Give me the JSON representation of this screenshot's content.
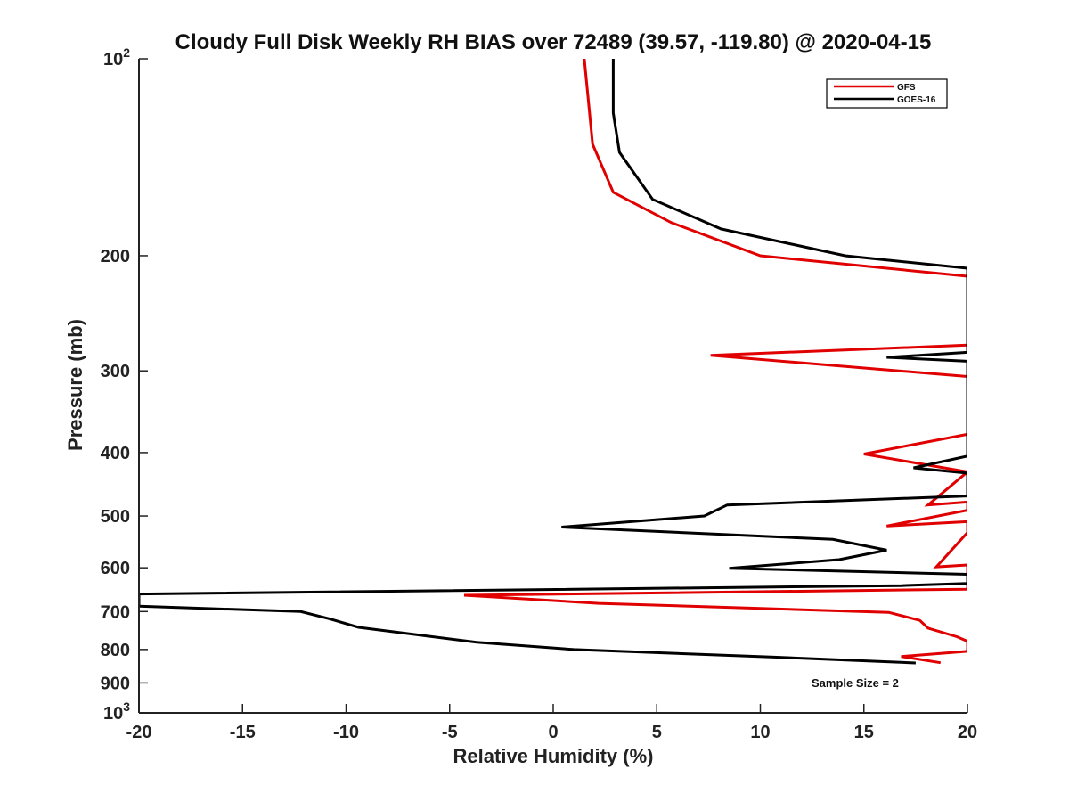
{
  "chart_data": {
    "type": "line",
    "title": "Cloudy Full Disk Weekly RH BIAS over 72489 (39.57, -119.80) @ 2020-04-15",
    "xlabel": "Relative Humidity (%)",
    "ylabel": "Pressure (mb)",
    "xlim": [
      -20,
      20
    ],
    "ylim": [
      1000,
      100
    ],
    "yscale": "log",
    "y_inverted": true,
    "grid": false,
    "legend_position": "top-right",
    "annotation": "Sample Size = 2",
    "x_tick_labels": [
      "-20",
      "-15",
      "-10",
      "-5",
      "0",
      "5",
      "10",
      "15",
      "20"
    ],
    "x_ticks": [
      -20,
      -15,
      -10,
      -5,
      0,
      5,
      10,
      15,
      20
    ],
    "y_ticks": [
      {
        "value": 100,
        "base": "10",
        "exp": "2"
      },
      {
        "value": 200,
        "label": "200"
      },
      {
        "value": 300,
        "label": "300"
      },
      {
        "value": 400,
        "label": "400"
      },
      {
        "value": 500,
        "label": "500"
      },
      {
        "value": 600,
        "label": "600"
      },
      {
        "value": 700,
        "label": "700"
      },
      {
        "value": 800,
        "label": "800"
      },
      {
        "value": 900,
        "label": "900"
      },
      {
        "value": 1000,
        "base": "10",
        "exp": "3"
      }
    ],
    "series": [
      {
        "name": "GFS",
        "color": "#e00000",
        "points": [
          [
            1.5,
            100
          ],
          [
            1.9,
            135
          ],
          [
            2.9,
            160
          ],
          [
            5.7,
            178
          ],
          [
            10.0,
            200
          ],
          [
            20,
            215
          ],
          [
            20,
            274
          ],
          [
            7.6,
            284
          ],
          [
            15.6,
            298
          ],
          [
            20,
            306
          ],
          [
            20,
            375
          ],
          [
            15.0,
            402
          ],
          [
            20,
            428
          ],
          [
            18.1,
            481
          ],
          [
            20,
            476
          ],
          [
            20,
            490
          ],
          [
            16.1,
            518
          ],
          [
            20,
            510
          ],
          [
            20,
            530
          ],
          [
            18.5,
            598
          ],
          [
            20,
            594
          ],
          [
            20,
            602
          ],
          [
            20,
            647
          ],
          [
            -4.3,
            661
          ],
          [
            2.2,
            680
          ],
          [
            16.2,
            702
          ],
          [
            17.7,
            722
          ],
          [
            18.1,
            742
          ],
          [
            19.5,
            765
          ],
          [
            20,
            777
          ],
          [
            20,
            805
          ],
          [
            16.8,
            820
          ],
          [
            18.7,
            838
          ]
        ]
      },
      {
        "name": "GOES-16",
        "color": "#000000",
        "points": [
          [
            2.9,
            100
          ],
          [
            2.9,
            121
          ],
          [
            3.2,
            139
          ],
          [
            4.8,
            164
          ],
          [
            8.1,
            182
          ],
          [
            14.1,
            200
          ],
          [
            20,
            209
          ],
          [
            20,
            281
          ],
          [
            16.1,
            286
          ],
          [
            20,
            290
          ],
          [
            20,
            405
          ],
          [
            17.4,
            422
          ],
          [
            20,
            430
          ],
          [
            20,
            466
          ],
          [
            8.4,
            481
          ],
          [
            7.3,
            500
          ],
          [
            0.4,
            520
          ],
          [
            13.5,
            543
          ],
          [
            16.1,
            564
          ],
          [
            13.8,
            583
          ],
          [
            8.5,
            601
          ],
          [
            20,
            614
          ],
          [
            20,
            634
          ],
          [
            16.8,
            639
          ],
          [
            -20,
            658
          ],
          [
            -20,
            687
          ],
          [
            -12.2,
            700
          ],
          [
            -10.8,
            718
          ],
          [
            -9.4,
            740
          ],
          [
            -3.7,
            780
          ],
          [
            1.0,
            800
          ],
          [
            10.8,
            822
          ],
          [
            17.5,
            839
          ]
        ]
      }
    ]
  }
}
